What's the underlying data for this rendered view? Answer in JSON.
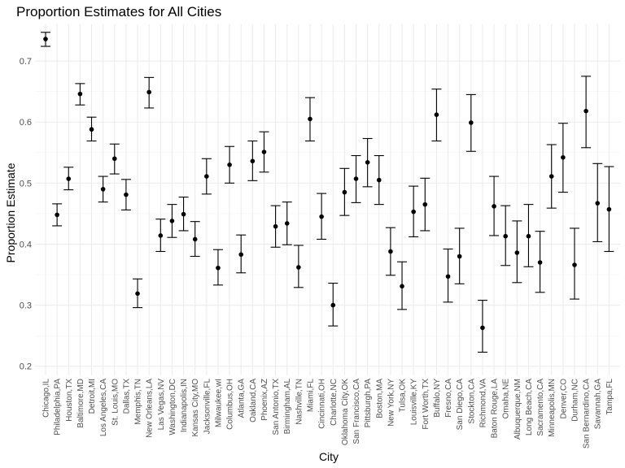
{
  "chart_data": {
    "type": "scatter",
    "title": "Proportion Estimates for All Cities",
    "xlabel": "City",
    "ylabel": "Proportion Estimate",
    "ylim": [
      0.185,
      0.76
    ],
    "yticks": [
      0.2,
      0.3,
      0.4,
      0.5,
      0.6,
      0.7
    ],
    "grid": true,
    "legend": "none",
    "points": [
      {
        "city": "Chicago,IL",
        "estimate": 0.736,
        "low": 0.724,
        "high": 0.747
      },
      {
        "city": "Philadelphia,PA",
        "estimate": 0.448,
        "low": 0.43,
        "high": 0.466
      },
      {
        "city": "Houston,TX",
        "estimate": 0.507,
        "low": 0.489,
        "high": 0.526
      },
      {
        "city": "Baltimore,MD",
        "estimate": 0.646,
        "low": 0.628,
        "high": 0.663
      },
      {
        "city": "Detroit,MI",
        "estimate": 0.588,
        "low": 0.569,
        "high": 0.608
      },
      {
        "city": "Los Angeles,CA",
        "estimate": 0.49,
        "low": 0.469,
        "high": 0.511
      },
      {
        "city": "St. Louis,MO",
        "estimate": 0.54,
        "low": 0.515,
        "high": 0.564
      },
      {
        "city": "Dallas,TX",
        "estimate": 0.481,
        "low": 0.456,
        "high": 0.506
      },
      {
        "city": "Memphis,TN",
        "estimate": 0.319,
        "low": 0.296,
        "high": 0.343
      },
      {
        "city": "New Orleans,LA",
        "estimate": 0.649,
        "low": 0.623,
        "high": 0.673
      },
      {
        "city": "Las Vegas,NV",
        "estimate": 0.414,
        "low": 0.388,
        "high": 0.441
      },
      {
        "city": "Washington,DC",
        "estimate": 0.438,
        "low": 0.411,
        "high": 0.465
      },
      {
        "city": "Indianapolis,IN",
        "estimate": 0.449,
        "low": 0.422,
        "high": 0.477
      },
      {
        "city": "Kansas City,MO",
        "estimate": 0.408,
        "low": 0.38,
        "high": 0.437
      },
      {
        "city": "Jacksonville,FL",
        "estimate": 0.511,
        "low": 0.482,
        "high": 0.54
      },
      {
        "city": "Milwaukee,wI",
        "estimate": 0.361,
        "low": 0.333,
        "high": 0.391
      },
      {
        "city": "Columbus,OH",
        "estimate": 0.53,
        "low": 0.5,
        "high": 0.56
      },
      {
        "city": "Atlanta,GA",
        "estimate": 0.383,
        "low": 0.353,
        "high": 0.415
      },
      {
        "city": "Oakland,CA",
        "estimate": 0.536,
        "low": 0.504,
        "high": 0.569
      },
      {
        "city": "Phoenix,AZ",
        "estimate": 0.551,
        "low": 0.518,
        "high": 0.584
      },
      {
        "city": "San Antonio,TX",
        "estimate": 0.429,
        "low": 0.395,
        "high": 0.463
      },
      {
        "city": "Birmingham,AL",
        "estimate": 0.434,
        "low": 0.399,
        "high": 0.469
      },
      {
        "city": "Nashville,TN",
        "estimate": 0.362,
        "low": 0.329,
        "high": 0.398
      },
      {
        "city": "Miami,FL",
        "estimate": 0.605,
        "low": 0.569,
        "high": 0.64
      },
      {
        "city": "Cincinnati,OH",
        "estimate": 0.445,
        "low": 0.408,
        "high": 0.483
      },
      {
        "city": "Charlotte,NC",
        "estimate": 0.3,
        "low": 0.266,
        "high": 0.336
      },
      {
        "city": "Oklahoma City,OK",
        "estimate": 0.485,
        "low": 0.447,
        "high": 0.524
      },
      {
        "city": "San Francisco,CA",
        "estimate": 0.507,
        "low": 0.468,
        "high": 0.545
      },
      {
        "city": "Pittsburgh,PA",
        "estimate": 0.534,
        "low": 0.494,
        "high": 0.573
      },
      {
        "city": "Boston,MA",
        "estimate": 0.505,
        "low": 0.465,
        "high": 0.545
      },
      {
        "city": "New York,NY",
        "estimate": 0.388,
        "low": 0.349,
        "high": 0.427
      },
      {
        "city": "Tulsa,OK",
        "estimate": 0.331,
        "low": 0.293,
        "high": 0.371
      },
      {
        "city": "Louisville,KY",
        "estimate": 0.453,
        "low": 0.412,
        "high": 0.495
      },
      {
        "city": "Fort Worth,TX",
        "estimate": 0.465,
        "low": 0.422,
        "high": 0.508
      },
      {
        "city": "Buffalo,NY",
        "estimate": 0.612,
        "low": 0.569,
        "high": 0.654
      },
      {
        "city": "Fresno,CA",
        "estimate": 0.347,
        "low": 0.305,
        "high": 0.392
      },
      {
        "city": "San Diego,CA",
        "estimate": 0.38,
        "low": 0.335,
        "high": 0.426
      },
      {
        "city": "Stockton,CA",
        "estimate": 0.599,
        "low": 0.552,
        "high": 0.645
      },
      {
        "city": "Richmond,VA",
        "estimate": 0.263,
        "low": 0.223,
        "high": 0.308
      },
      {
        "city": "Baton Rouge,LA",
        "estimate": 0.462,
        "low": 0.414,
        "high": 0.511
      },
      {
        "city": "Omaha,NE",
        "estimate": 0.413,
        "low": 0.365,
        "high": 0.463
      },
      {
        "city": "Albuquerque,NM",
        "estimate": 0.386,
        "low": 0.337,
        "high": 0.438
      },
      {
        "city": "Long Beach,CA",
        "estimate": 0.413,
        "low": 0.363,
        "high": 0.465
      },
      {
        "city": "Sacramento,CA",
        "estimate": 0.37,
        "low": 0.321,
        "high": 0.421
      },
      {
        "city": "Minneapolis,MN",
        "estimate": 0.511,
        "low": 0.459,
        "high": 0.563
      },
      {
        "city": "Denver,CO",
        "estimate": 0.542,
        "low": 0.485,
        "high": 0.598
      },
      {
        "city": "Durham,NC",
        "estimate": 0.366,
        "low": 0.31,
        "high": 0.426
      },
      {
        "city": "San Bernardino,CA",
        "estimate": 0.618,
        "low": 0.558,
        "high": 0.675
      },
      {
        "city": "Savannah,GA",
        "estimate": 0.467,
        "low": 0.404,
        "high": 0.532
      },
      {
        "city": "Tampa,FL",
        "estimate": 0.457,
        "low": 0.388,
        "high": 0.527
      }
    ]
  }
}
